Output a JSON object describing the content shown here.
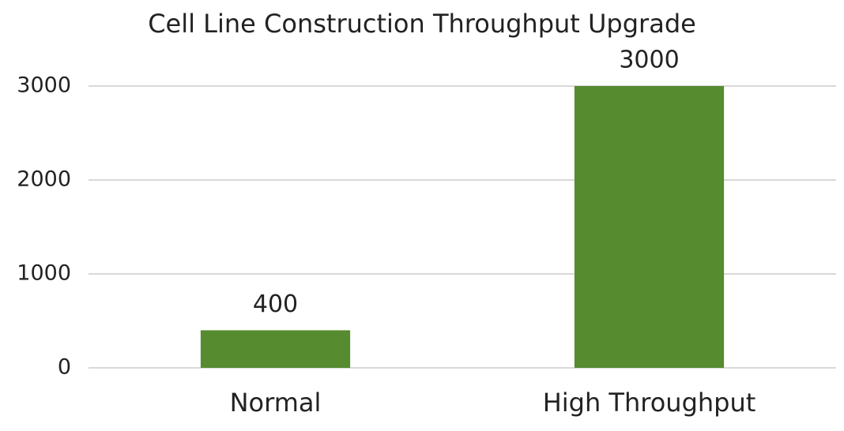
{
  "chart_data": {
    "type": "bar",
    "title": "Cell Line Construction Throughput Upgrade",
    "categories": [
      "Normal",
      "High Throughput"
    ],
    "values": [
      400,
      3000
    ],
    "color": "#568b2f",
    "ylim": [
      0,
      3000
    ],
    "yticks": [
      0,
      1000,
      2000,
      3000
    ],
    "grid": true
  }
}
